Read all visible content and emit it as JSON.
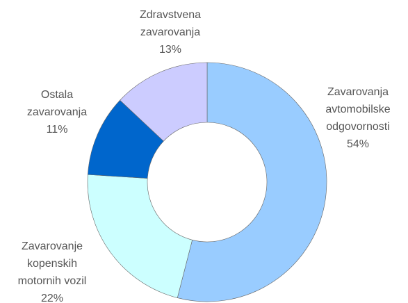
{
  "chart_data": {
    "type": "donut",
    "categories": [
      [
        "Zavarovanja",
        "avtomobilske",
        "odgovornosti"
      ],
      [
        "Zavarovanje",
        "kopenskih",
        "motornih vozil"
      ],
      [
        "Ostala",
        "zavarovanja"
      ],
      [
        "Zdravstvena",
        "zavarovanja"
      ]
    ],
    "values": [
      54,
      22,
      11,
      13
    ],
    "value_labels": [
      "54%",
      "22%",
      "11%",
      "13%"
    ],
    "colors": [
      "#99ccff",
      "#ccffff",
      "#0066cc",
      "#ccccff"
    ]
  }
}
